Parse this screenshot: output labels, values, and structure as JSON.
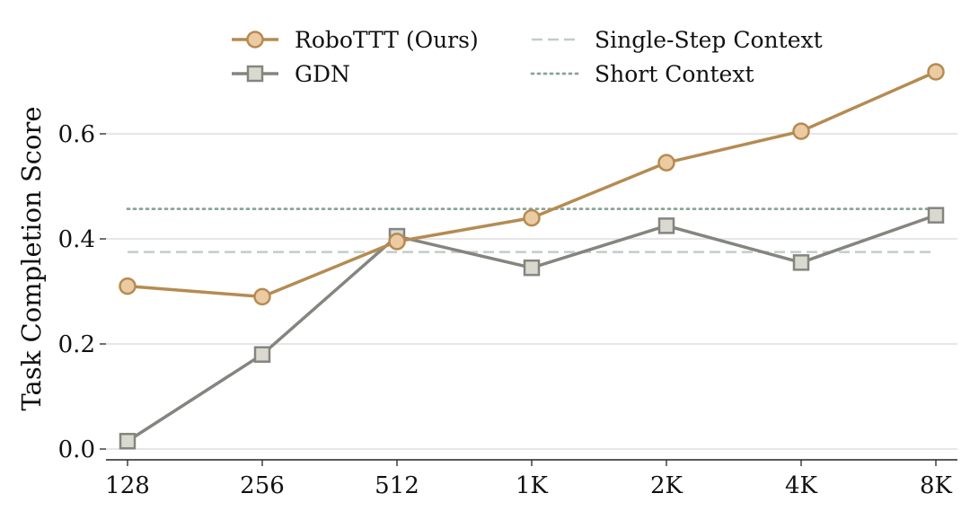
{
  "chart_data": {
    "type": "line",
    "x": [
      "128",
      "256",
      "512",
      "1K",
      "2K",
      "4K",
      "8K"
    ],
    "ylabel": "Task Completion Score",
    "xlabel": "",
    "ylim": [
      -0.02,
      0.75
    ],
    "yticks": [
      0.0,
      0.2,
      0.4,
      0.6
    ],
    "ytick_labels": [
      "0.0",
      "0.2",
      "0.4",
      "0.6"
    ],
    "grid": "horizontal",
    "legend_placement": "top-center",
    "series": [
      {
        "name": "RoboTTT (Ours)",
        "marker": "circle",
        "color": "#b58b52",
        "fill": "#eccaa2",
        "values": [
          0.31,
          0.29,
          0.395,
          0.44,
          0.545,
          0.605,
          0.718
        ]
      },
      {
        "name": "GDN",
        "marker": "square",
        "color": "#858580",
        "fill": "#d9d9d0",
        "values": [
          0.015,
          0.18,
          0.405,
          0.345,
          0.425,
          0.355,
          0.445
        ]
      }
    ],
    "reference_lines": [
      {
        "name": "Single-Step Context",
        "value": 0.375,
        "style": "dashed",
        "color": "#c2cdc7"
      },
      {
        "name": "Short Context",
        "value": 0.457,
        "style": "dotted",
        "color": "#8aa596"
      }
    ]
  }
}
